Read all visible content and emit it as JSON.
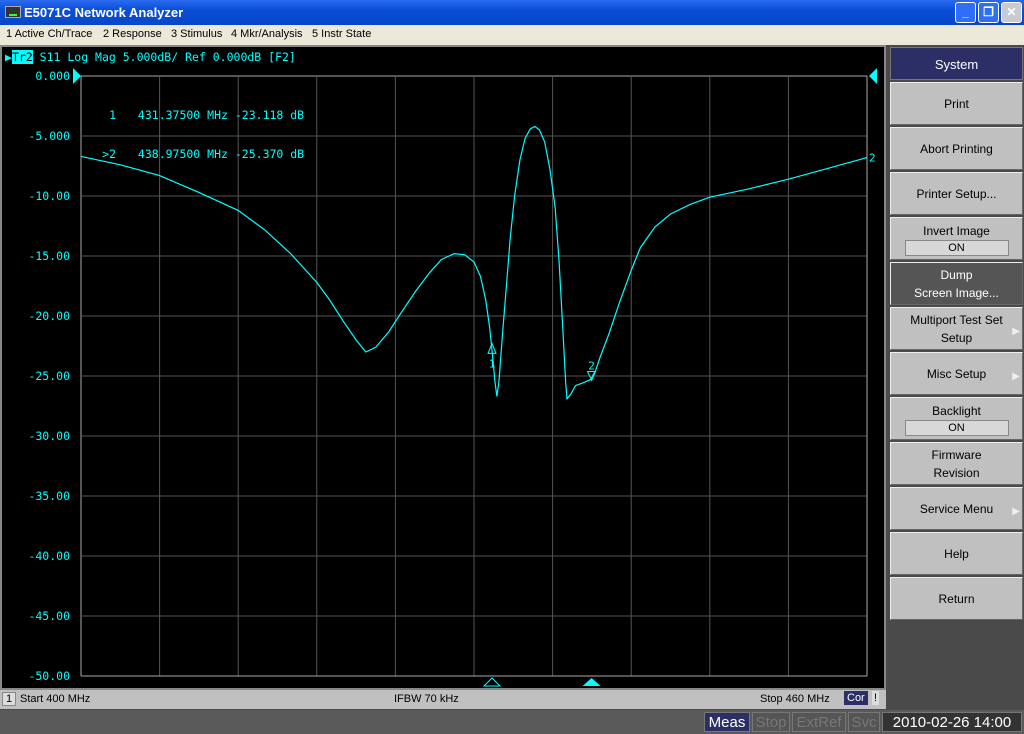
{
  "window": {
    "title": "E5071C Network Analyzer",
    "buttons": [
      "minimize",
      "restore",
      "close"
    ]
  },
  "menu": [
    "1 Active Ch/Trace",
    "2 Response",
    "3 Stimulus",
    "4 Mkr/Analysis",
    "5 Instr State"
  ],
  "trace_header": {
    "trace": "Tr2",
    "text": "S11 Log Mag 5.000dB/ Ref 0.000dB [F2]"
  },
  "markers": [
    {
      "label": "1",
      "freq": "431.37500 MHz",
      "value": "-23.118 dB",
      "active": false
    },
    {
      "label": ">2",
      "freq": "438.97500 MHz",
      "value": "-25.370 dB",
      "active": true
    }
  ],
  "trace_end_label": "2",
  "colors": {
    "trace": "#00ffff",
    "grid": "#555555",
    "background": "#000000",
    "softkey_header": "#2c2f66"
  },
  "chart_data": {
    "type": "line",
    "title": "S11 Log Mag 5.000dB/ Ref 0.000dB [F2]",
    "xlim": [
      400,
      460
    ],
    "ylim": [
      -50,
      0
    ],
    "grid": true,
    "x_unit": "MHz",
    "y_unit": "dB",
    "yticks": [
      "0.000",
      "-5.000",
      "-10.00",
      "-15.00",
      "-20.00",
      "-25.00",
      "-30.00",
      "-35.00",
      "-40.00",
      "-45.00",
      "-50.00"
    ],
    "series": [
      {
        "x": [
          400,
          403,
          406,
          409,
          412,
          414,
          416,
          418,
          419,
          420,
          421,
          421.75,
          422.5,
          423.5,
          424.4,
          425.5,
          426.6,
          427.5,
          428.5,
          429.3,
          430,
          430.5,
          430.9,
          431.2,
          431.4,
          431.6,
          431.75,
          431.9,
          432.2,
          432.5,
          432.75,
          433.1,
          433.5,
          433.9,
          434.3,
          434.65,
          435,
          435.4,
          435.8,
          436.2,
          436.5,
          436.8,
          437,
          437.1,
          437.4,
          437.75,
          438.25,
          438.9,
          439.3,
          439.6,
          440.3,
          441.1,
          442,
          442.7,
          443.8,
          445,
          446.5,
          448,
          451,
          454,
          457,
          460
        ],
        "y": [
          -6.7,
          -7.4,
          -8.3,
          -9.7,
          -11.2,
          -12.8,
          -14.8,
          -17.2,
          -18.7,
          -20.4,
          -22.0,
          -23.0,
          -22.6,
          -21.3,
          -19.8,
          -18.0,
          -16.4,
          -15.3,
          -14.8,
          -14.9,
          -15.5,
          -16.7,
          -18.7,
          -21.0,
          -23.1,
          -25.5,
          -26.7,
          -25.5,
          -21.2,
          -17.2,
          -13.7,
          -10.0,
          -7.0,
          -5.2,
          -4.4,
          -4.2,
          -4.5,
          -5.5,
          -7.8,
          -11.0,
          -15.5,
          -21.5,
          -25.6,
          -26.9,
          -26.5,
          -25.8,
          -25.6,
          -25.3,
          -24.5,
          -23.5,
          -21.5,
          -18.9,
          -16.2,
          -14.3,
          -12.6,
          -11.5,
          -10.7,
          -10.1,
          -9.4,
          -8.6,
          -7.7,
          -6.8
        ]
      }
    ],
    "marker_points": [
      {
        "label": "1",
        "x": 431.375,
        "y": -23.118
      },
      {
        "label": "2",
        "x": 438.975,
        "y": -25.37
      }
    ]
  },
  "channel_bar": {
    "channel": "1",
    "start": "Start 400 MHz",
    "ifbw": "IFBW 70 kHz",
    "stop": "Stop 460 MHz",
    "cor": "Cor",
    "warn": "!"
  },
  "softkeys": {
    "header": "System",
    "items": [
      {
        "label": "Print"
      },
      {
        "label": "Abort Printing"
      },
      {
        "label": "Printer Setup..."
      },
      {
        "label": "Invert Image",
        "value": "ON"
      },
      {
        "label": "Dump",
        "label2": "Screen Image...",
        "selected": true
      },
      {
        "label": "Multiport Test Set",
        "label2": "Setup",
        "submenu": true
      },
      {
        "label": "Misc Setup",
        "submenu": true
      },
      {
        "label": "Backlight",
        "value": "ON"
      },
      {
        "label": "Firmware",
        "label2": "Revision"
      },
      {
        "label": "Service Menu",
        "submenu": true
      },
      {
        "label": "Help"
      },
      {
        "label": "Return"
      }
    ]
  },
  "status": {
    "meas": "Meas",
    "stop": "Stop",
    "extref": "ExtRef",
    "svc": "Svc",
    "datetime": "2010-02-26 14:00"
  }
}
